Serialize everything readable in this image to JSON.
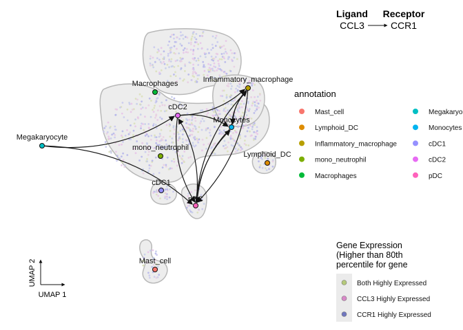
{
  "header": {
    "ligand_title": "Ligand",
    "receptor_title": "Receptor",
    "ligand": "CCL3",
    "receptor": "CCR1"
  },
  "axes": {
    "x_label": "UMAP 1",
    "y_label": "UMAP 2"
  },
  "legend_annotation": {
    "title": "annotation",
    "col1": [
      {
        "label": "Mast_cell",
        "color": "#F8766D"
      },
      {
        "label": "Lymphoid_DC",
        "color": "#DE8C00"
      },
      {
        "label": "Inflammatory_macrophage",
        "color": "#B79F00"
      },
      {
        "label": "mono_neutrophil",
        "color": "#7CAE00"
      },
      {
        "label": "Macrophages",
        "color": "#00BA38"
      }
    ],
    "col2": [
      {
        "label": "Megakaryo",
        "color": "#00BFC4"
      },
      {
        "label": "Monocytes",
        "color": "#00B4F0"
      },
      {
        "label": "cDC1",
        "color": "#9590FF"
      },
      {
        "label": "cDC2",
        "color": "#E76BF3"
      },
      {
        "label": "pDC",
        "color": "#FF62BC"
      }
    ]
  },
  "legend_expression": {
    "title_lines": [
      "Gene Expression",
      "(Higher than 80th",
      "percentile for gene"
    ],
    "items": [
      {
        "label": "Both Highly Expressed",
        "color": "#B5C97A"
      },
      {
        "label": "CCL3 Highly Expressed",
        "color": "#D888C8"
      },
      {
        "label": "CCR1 Highly Expressed",
        "color": "#6F76BE"
      }
    ]
  },
  "chart_data": {
    "type": "scatter",
    "x_label": "UMAP 1",
    "y_label": "UMAP 2",
    "cell_types": [
      {
        "name": "Macrophages",
        "color": "#00BA38"
      },
      {
        "name": "Inflammatory_macrophage",
        "color": "#B79F00"
      },
      {
        "name": "cDC2",
        "color": "#E76BF3"
      },
      {
        "name": "Monocytes",
        "color": "#00B4F0"
      },
      {
        "name": "Megakaryocyte",
        "color": "#00BFC4"
      },
      {
        "name": "mono_neutrophil",
        "color": "#7CAE00"
      },
      {
        "name": "Lymphoid_DC",
        "color": "#DE8C00"
      },
      {
        "name": "cDC1",
        "color": "#9590FF"
      },
      {
        "name": "pDC",
        "color": "#FF62BC"
      },
      {
        "name": "Mast_cell",
        "color": "#F8766D"
      }
    ],
    "interactions": [
      {
        "source": "Megakaryocyte",
        "target": "cDC2"
      },
      {
        "source": "Megakaryocyte",
        "target": "pDC"
      },
      {
        "source": "cDC2",
        "target": "Inflammatory_macrophage"
      },
      {
        "source": "cDC2",
        "target": "Monocytes"
      },
      {
        "source": "cDC2",
        "target": "pDC"
      },
      {
        "source": "Monocytes",
        "target": "Inflammatory_macrophage"
      },
      {
        "source": "Monocytes",
        "target": "pDC"
      },
      {
        "source": "pDC",
        "target": "Inflammatory_macrophage"
      },
      {
        "source": "pDC",
        "target": "cDC2"
      },
      {
        "source": "pDC",
        "target": "Monocytes"
      },
      {
        "source": "Inflammatory_macrophage",
        "target": "Monocytes"
      },
      {
        "source": "Inflammatory_macrophage",
        "target": "pDC"
      }
    ]
  }
}
